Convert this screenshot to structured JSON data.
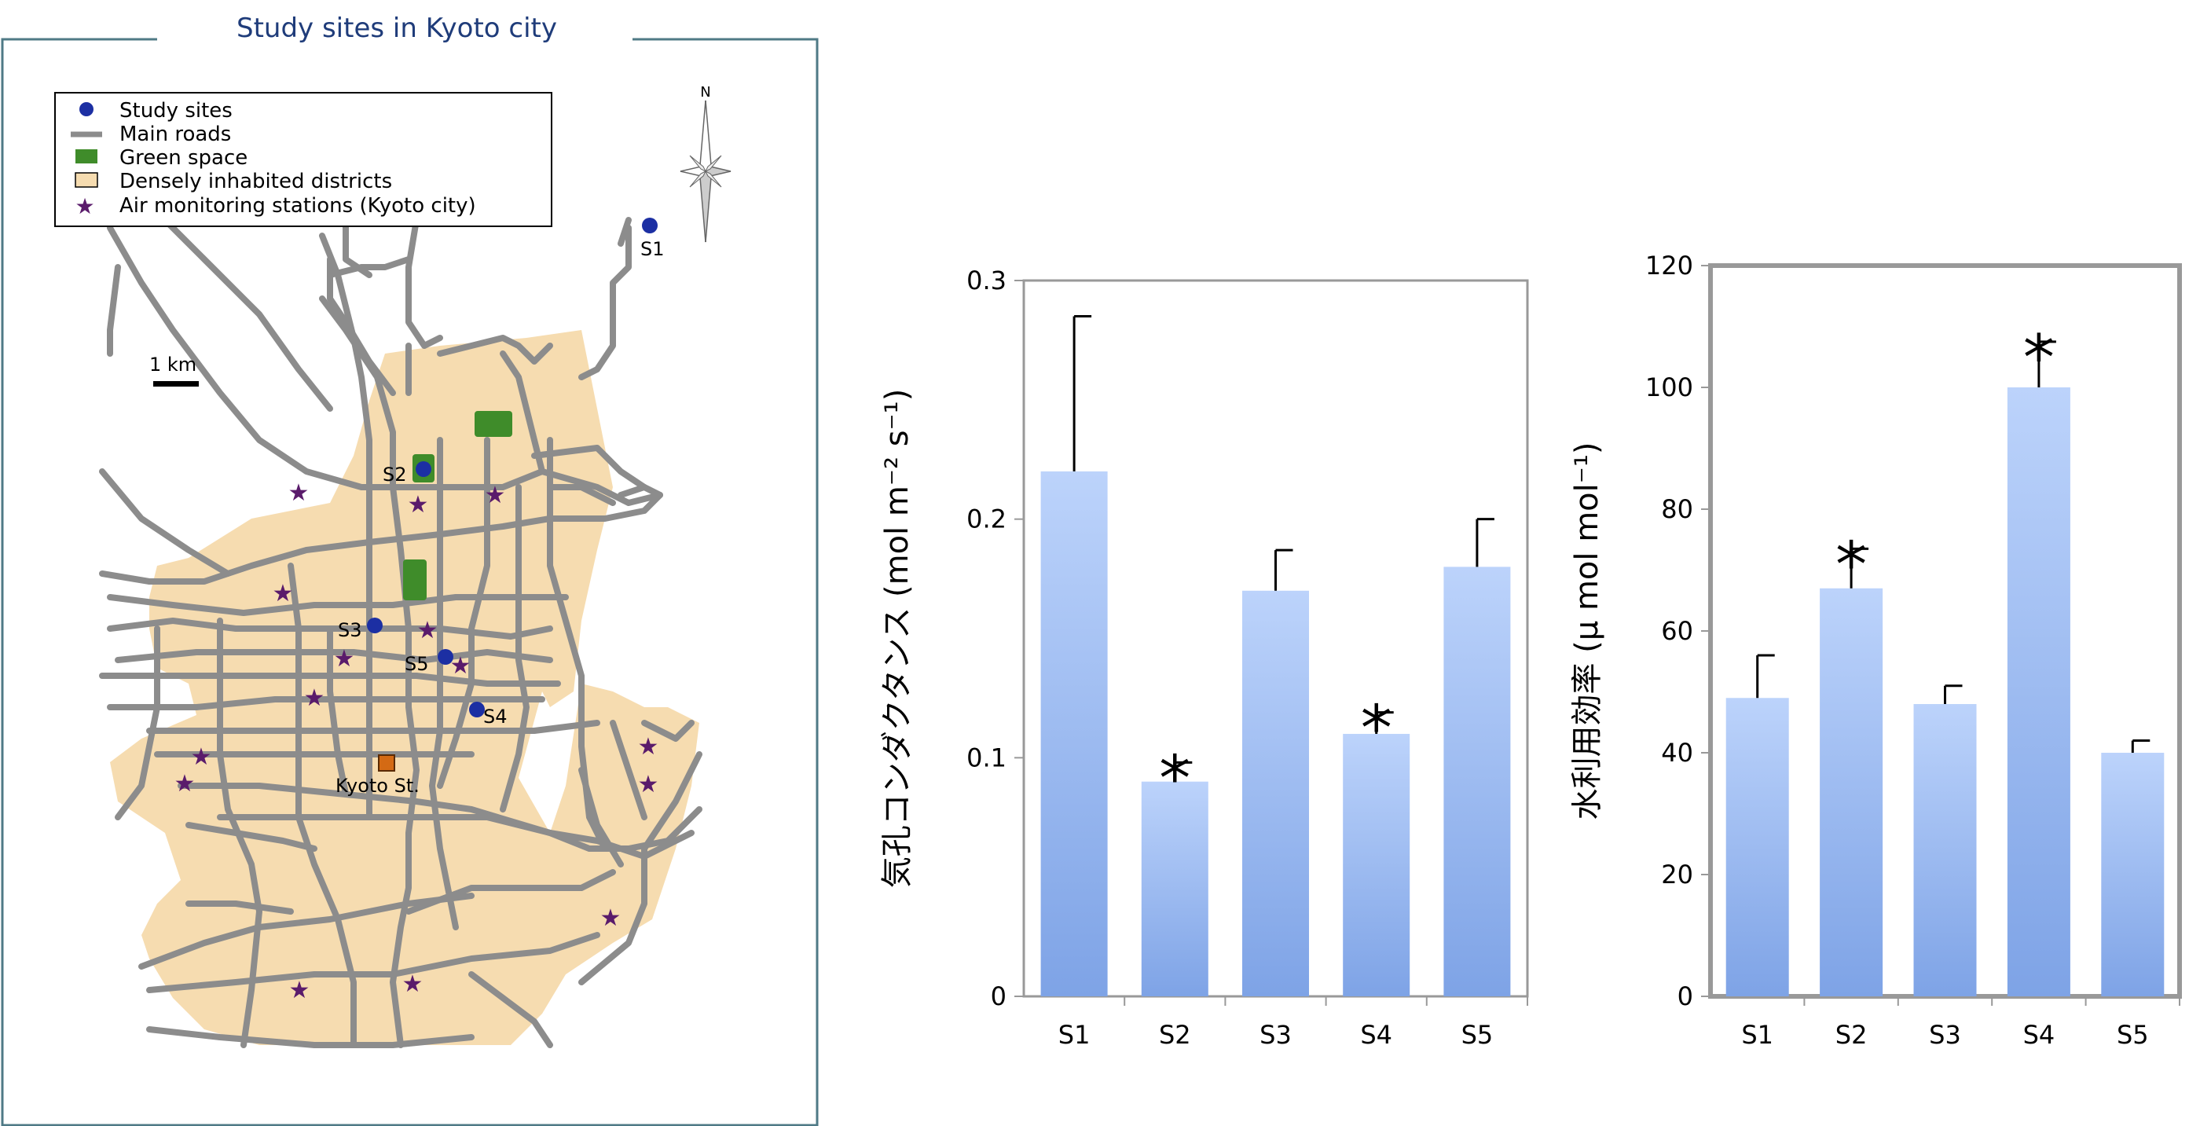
{
  "map": {
    "title": "Study sites in Kyoto city",
    "north_label": "N",
    "scale_label": "1 km",
    "station_label": "Kyoto St.",
    "legend": [
      {
        "label": "Study sites",
        "symbol": "dot",
        "color": "#1c2fa3"
      },
      {
        "label": "Main roads",
        "symbol": "line",
        "color": "#8c8c8c"
      },
      {
        "label": "Green space",
        "symbol": "rect",
        "color": "#3f8c2a"
      },
      {
        "label": "Densely inhabited districts",
        "symbol": "rect",
        "color": "#f6dcb0"
      },
      {
        "label": "Air monitoring stations (Kyoto city)",
        "symbol": "star",
        "color": "#5a1b6b"
      }
    ],
    "sites": [
      "S1",
      "S2",
      "S3",
      "S4",
      "S5"
    ]
  },
  "chart_data": [
    {
      "type": "bar",
      "title": "",
      "ylabel": "気孔コンダクタンス (mol m⁻² s⁻¹)",
      "xlabel": "",
      "categories": [
        "S1",
        "S2",
        "S3",
        "S4",
        "S5"
      ],
      "values": [
        0.22,
        0.09,
        0.17,
        0.11,
        0.18
      ],
      "error": [
        0.065,
        0.008,
        0.017,
        0.009,
        0.02
      ],
      "significant": [
        false,
        true,
        false,
        true,
        false
      ],
      "ylim": [
        0,
        0.3
      ],
      "yticks": [
        "0",
        "0.1",
        "0.2",
        "0.3"
      ],
      "bar_color": "#7ea3e6"
    },
    {
      "type": "bar",
      "title": "",
      "ylabel": "水利用効率 (μ mol mol⁻¹)",
      "xlabel": "",
      "categories": [
        "S1",
        "S2",
        "S3",
        "S4",
        "S5"
      ],
      "values": [
        49,
        67,
        48,
        100,
        40
      ],
      "error": [
        7,
        6.5,
        3,
        7.5,
        2
      ],
      "significant": [
        false,
        true,
        false,
        true,
        false
      ],
      "ylim": [
        0,
        120
      ],
      "yticks": [
        "0",
        "20",
        "40",
        "60",
        "80",
        "100",
        "120"
      ],
      "bar_color": "#7ea3e6"
    }
  ],
  "significance_mark": "*"
}
